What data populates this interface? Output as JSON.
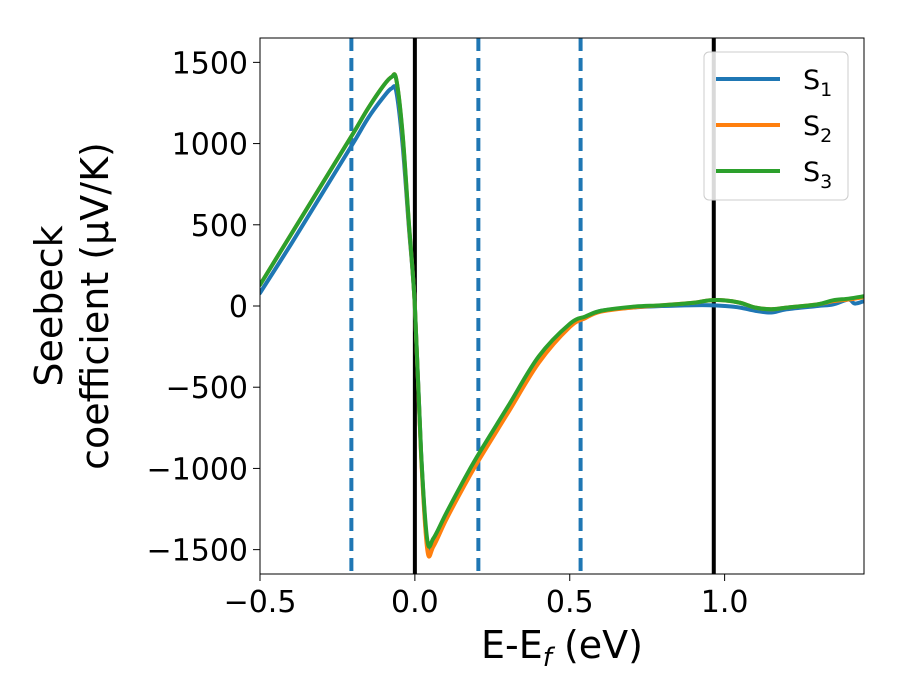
{
  "chart_data": {
    "type": "line",
    "title": "",
    "xlabel": "E-E",
    "xlabel_subscript": "f",
    "xlabel_suffix": " (eV)",
    "ylabel_line1": "Seebeck",
    "ylabel_line2": "coefficient  (μV/K)",
    "xlim": [
      -0.5,
      1.45
    ],
    "ylim": [
      -1650,
      1650
    ],
    "xticks": [
      -0.5,
      0.0,
      0.5,
      1.0
    ],
    "xtick_labels": [
      "−0.5",
      "0.0",
      "0.5",
      "1.0"
    ],
    "yticks": [
      1500,
      1000,
      500,
      0,
      -500,
      -1000,
      -1500
    ],
    "ytick_labels": [
      "1500",
      "1000",
      "500",
      "0",
      "−500",
      "−1000",
      "−1500"
    ],
    "grid": false,
    "legend_position": "top-right",
    "vlines_solid": [
      0.0,
      0.965
    ],
    "vlines_dashed": [
      -0.205,
      0.205,
      0.535
    ],
    "vline_solid_color": "#000000",
    "vline_dashed_color": "#1f77b4",
    "series": [
      {
        "name": "S",
        "subscript": "1",
        "color": "#1f77b4",
        "x": [
          -0.5,
          -0.4,
          -0.3,
          -0.2,
          -0.15,
          -0.1,
          -0.075,
          -0.06,
          -0.04,
          -0.02,
          0.0,
          0.02,
          0.04,
          0.06,
          0.1,
          0.15,
          0.2,
          0.3,
          0.4,
          0.5,
          0.55,
          0.6,
          0.7,
          0.8,
          0.9,
          0.95,
          1.0,
          1.05,
          1.1,
          1.15,
          1.2,
          1.3,
          1.35,
          1.4,
          1.42,
          1.45
        ],
        "y": [
          80,
          380,
          690,
          1000,
          1160,
          1290,
          1340,
          1320,
          1000,
          500,
          0,
          -900,
          -1480,
          -1460,
          -1300,
          -1120,
          -950,
          -640,
          -330,
          -120,
          -70,
          -30,
          -10,
          0,
          5,
          5,
          0,
          -10,
          -30,
          -40,
          -20,
          0,
          10,
          40,
          15,
          30
        ]
      },
      {
        "name": "S",
        "subscript": "2",
        "color": "#ff7f0e",
        "x": [
          -0.5,
          -0.4,
          -0.3,
          -0.2,
          -0.15,
          -0.1,
          -0.075,
          -0.06,
          -0.04,
          -0.02,
          0.0,
          0.02,
          0.04,
          0.06,
          0.1,
          0.15,
          0.2,
          0.3,
          0.4,
          0.5,
          0.55,
          0.6,
          0.7,
          0.8,
          0.9,
          0.95,
          1.0,
          1.05,
          1.1,
          1.15,
          1.2,
          1.3,
          1.35,
          1.4,
          1.45
        ],
        "y": [
          130,
          440,
          750,
          1060,
          1220,
          1360,
          1410,
          1395,
          1060,
          520,
          0,
          -920,
          -1500,
          -1480,
          -1320,
          -1140,
          -970,
          -660,
          -350,
          -130,
          -75,
          -35,
          -10,
          5,
          20,
          35,
          35,
          20,
          -10,
          -20,
          -10,
          10,
          30,
          40,
          55
        ]
      },
      {
        "name": "S",
        "subscript": "3",
        "color": "#2ca02c",
        "x": [
          -0.5,
          -0.4,
          -0.3,
          -0.2,
          -0.15,
          -0.1,
          -0.075,
          -0.06,
          -0.04,
          -0.02,
          0.0,
          0.02,
          0.04,
          0.06,
          0.1,
          0.15,
          0.2,
          0.3,
          0.4,
          0.5,
          0.55,
          0.6,
          0.7,
          0.8,
          0.9,
          0.95,
          1.0,
          1.05,
          1.1,
          1.15,
          1.2,
          1.3,
          1.35,
          1.4,
          1.45
        ],
        "y": [
          130,
          440,
          750,
          1060,
          1220,
          1360,
          1410,
          1395,
          1070,
          530,
          0,
          -900,
          -1440,
          -1430,
          -1280,
          -1100,
          -930,
          -620,
          -310,
          -110,
          -65,
          -30,
          -5,
          5,
          20,
          35,
          35,
          20,
          -10,
          -20,
          -10,
          10,
          35,
          45,
          60
        ]
      }
    ]
  }
}
